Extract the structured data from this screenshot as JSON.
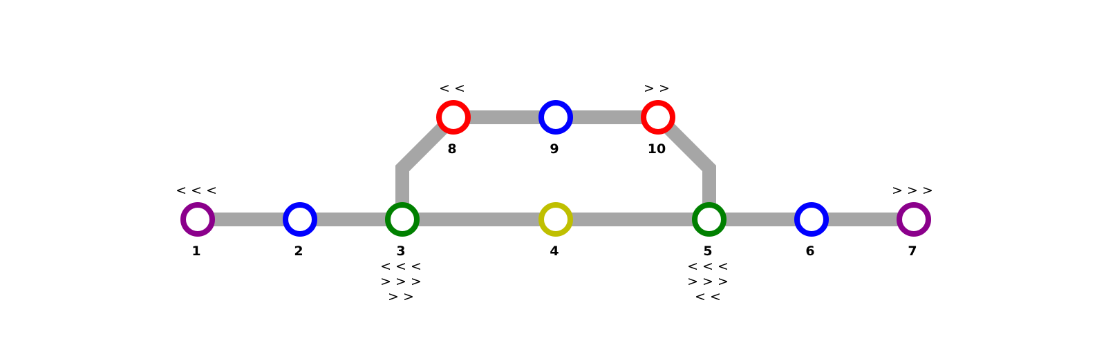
{
  "diagram": {
    "track_color": "#a6a6a6",
    "nodes": [
      {
        "id": "n1",
        "label": "1",
        "color": "#8b008b",
        "arrows_above": [
          "< < <"
        ],
        "arrows_below": []
      },
      {
        "id": "n2",
        "label": "2",
        "color": "#0000ff",
        "arrows_above": [],
        "arrows_below": []
      },
      {
        "id": "n3",
        "label": "3",
        "color": "#008000",
        "arrows_above": [],
        "arrows_below": [
          "< < <",
          "> > >",
          "> >"
        ]
      },
      {
        "id": "n4",
        "label": "4",
        "color": "#bfbf00",
        "arrows_above": [],
        "arrows_below": []
      },
      {
        "id": "n5",
        "label": "5",
        "color": "#008000",
        "arrows_above": [],
        "arrows_below": [
          "< < <",
          "> > >",
          "< <"
        ]
      },
      {
        "id": "n6",
        "label": "6",
        "color": "#0000ff",
        "arrows_above": [],
        "arrows_below": []
      },
      {
        "id": "n7",
        "label": "7",
        "color": "#8b008b",
        "arrows_above": [
          "> > >"
        ],
        "arrows_below": []
      },
      {
        "id": "n8",
        "label": "8",
        "color": "#ff0000",
        "arrows_above": [
          "< <"
        ],
        "arrows_below": []
      },
      {
        "id": "n9",
        "label": "9",
        "color": "#0000ff",
        "arrows_above": [],
        "arrows_below": []
      },
      {
        "id": "n10",
        "label": "10",
        "color": "#ff0000",
        "arrows_above": [
          "> >"
        ],
        "arrows_below": []
      }
    ],
    "edges": [
      [
        "n1",
        "n2"
      ],
      [
        "n2",
        "n3"
      ],
      [
        "n3",
        "n4"
      ],
      [
        "n4",
        "n5"
      ],
      [
        "n5",
        "n6"
      ],
      [
        "n6",
        "n7"
      ],
      [
        "n3",
        "n8"
      ],
      [
        "n8",
        "n9"
      ],
      [
        "n9",
        "n10"
      ],
      [
        "n10",
        "n5"
      ]
    ]
  }
}
